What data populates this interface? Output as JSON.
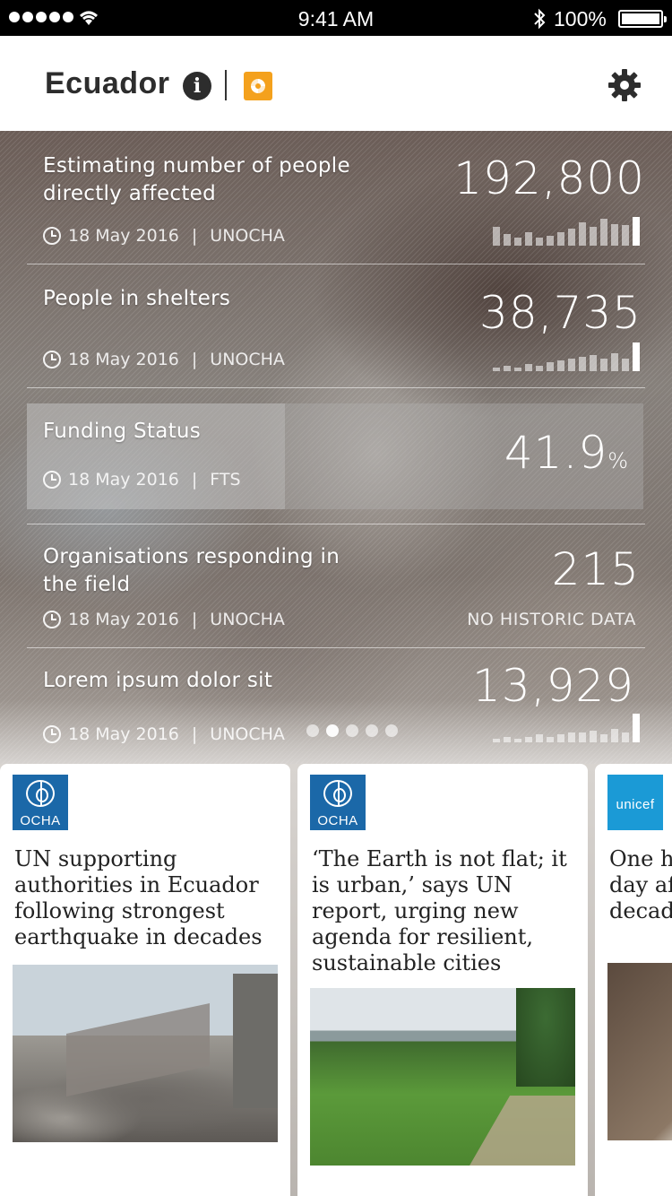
{
  "status_bar": {
    "time": "9:41 AM",
    "battery": "100%",
    "icons": [
      "signal-icon",
      "wifi-icon",
      "bluetooth-icon",
      "battery-icon"
    ]
  },
  "header": {
    "title": "Ecuador",
    "icons": [
      "info-icon",
      "brand-logo-icon",
      "gear-icon"
    ],
    "accent_color": "#f4a11d"
  },
  "stats": [
    {
      "label": "Estimating number of people directly affected",
      "date": "18 May 2016",
      "source": "UNOCHA",
      "value": "192,800",
      "sparkline": [
        22,
        14,
        10,
        16,
        10,
        12,
        16,
        20,
        28,
        22,
        32,
        26,
        24,
        34
      ]
    },
    {
      "label": "People in shelters",
      "date": "18 May 2016",
      "source": "UNOCHA",
      "value": "38,735",
      "sparkline": [
        4,
        6,
        4,
        8,
        6,
        10,
        12,
        14,
        16,
        18,
        14,
        20,
        14,
        32
      ]
    },
    {
      "label": "Funding Status",
      "date": "18 May 2016",
      "source": "FTS",
      "value": "41.9",
      "unit": "%",
      "funding_fraction": 0.419
    },
    {
      "label": "Organisations responding in the field",
      "date": "18 May 2016",
      "source": "UNOCHA",
      "value": "215",
      "note": "NO HISTORIC DATA"
    },
    {
      "label": "Lorem ipsum dolor sit",
      "date": "18 May 2016",
      "source": "UNOCHA",
      "value": "13,929",
      "sparkline": [
        4,
        6,
        4,
        6,
        8,
        6,
        8,
        10,
        10,
        12,
        8,
        14,
        10,
        30
      ]
    }
  ],
  "pager": {
    "count": 5,
    "active": 1
  },
  "cards": [
    {
      "logo": "OCHA",
      "headline": "UN supporting authorities in Ecuador following strongest earthquake in decades"
    },
    {
      "logo": "OCHA",
      "headline": "‘The Earth is not flat; it is urban,’ says UN report, urging new agenda for resilient, sustainable cities"
    },
    {
      "logo": "unicef",
      "headline": "One hundred born every day after worst quake in decades"
    }
  ]
}
